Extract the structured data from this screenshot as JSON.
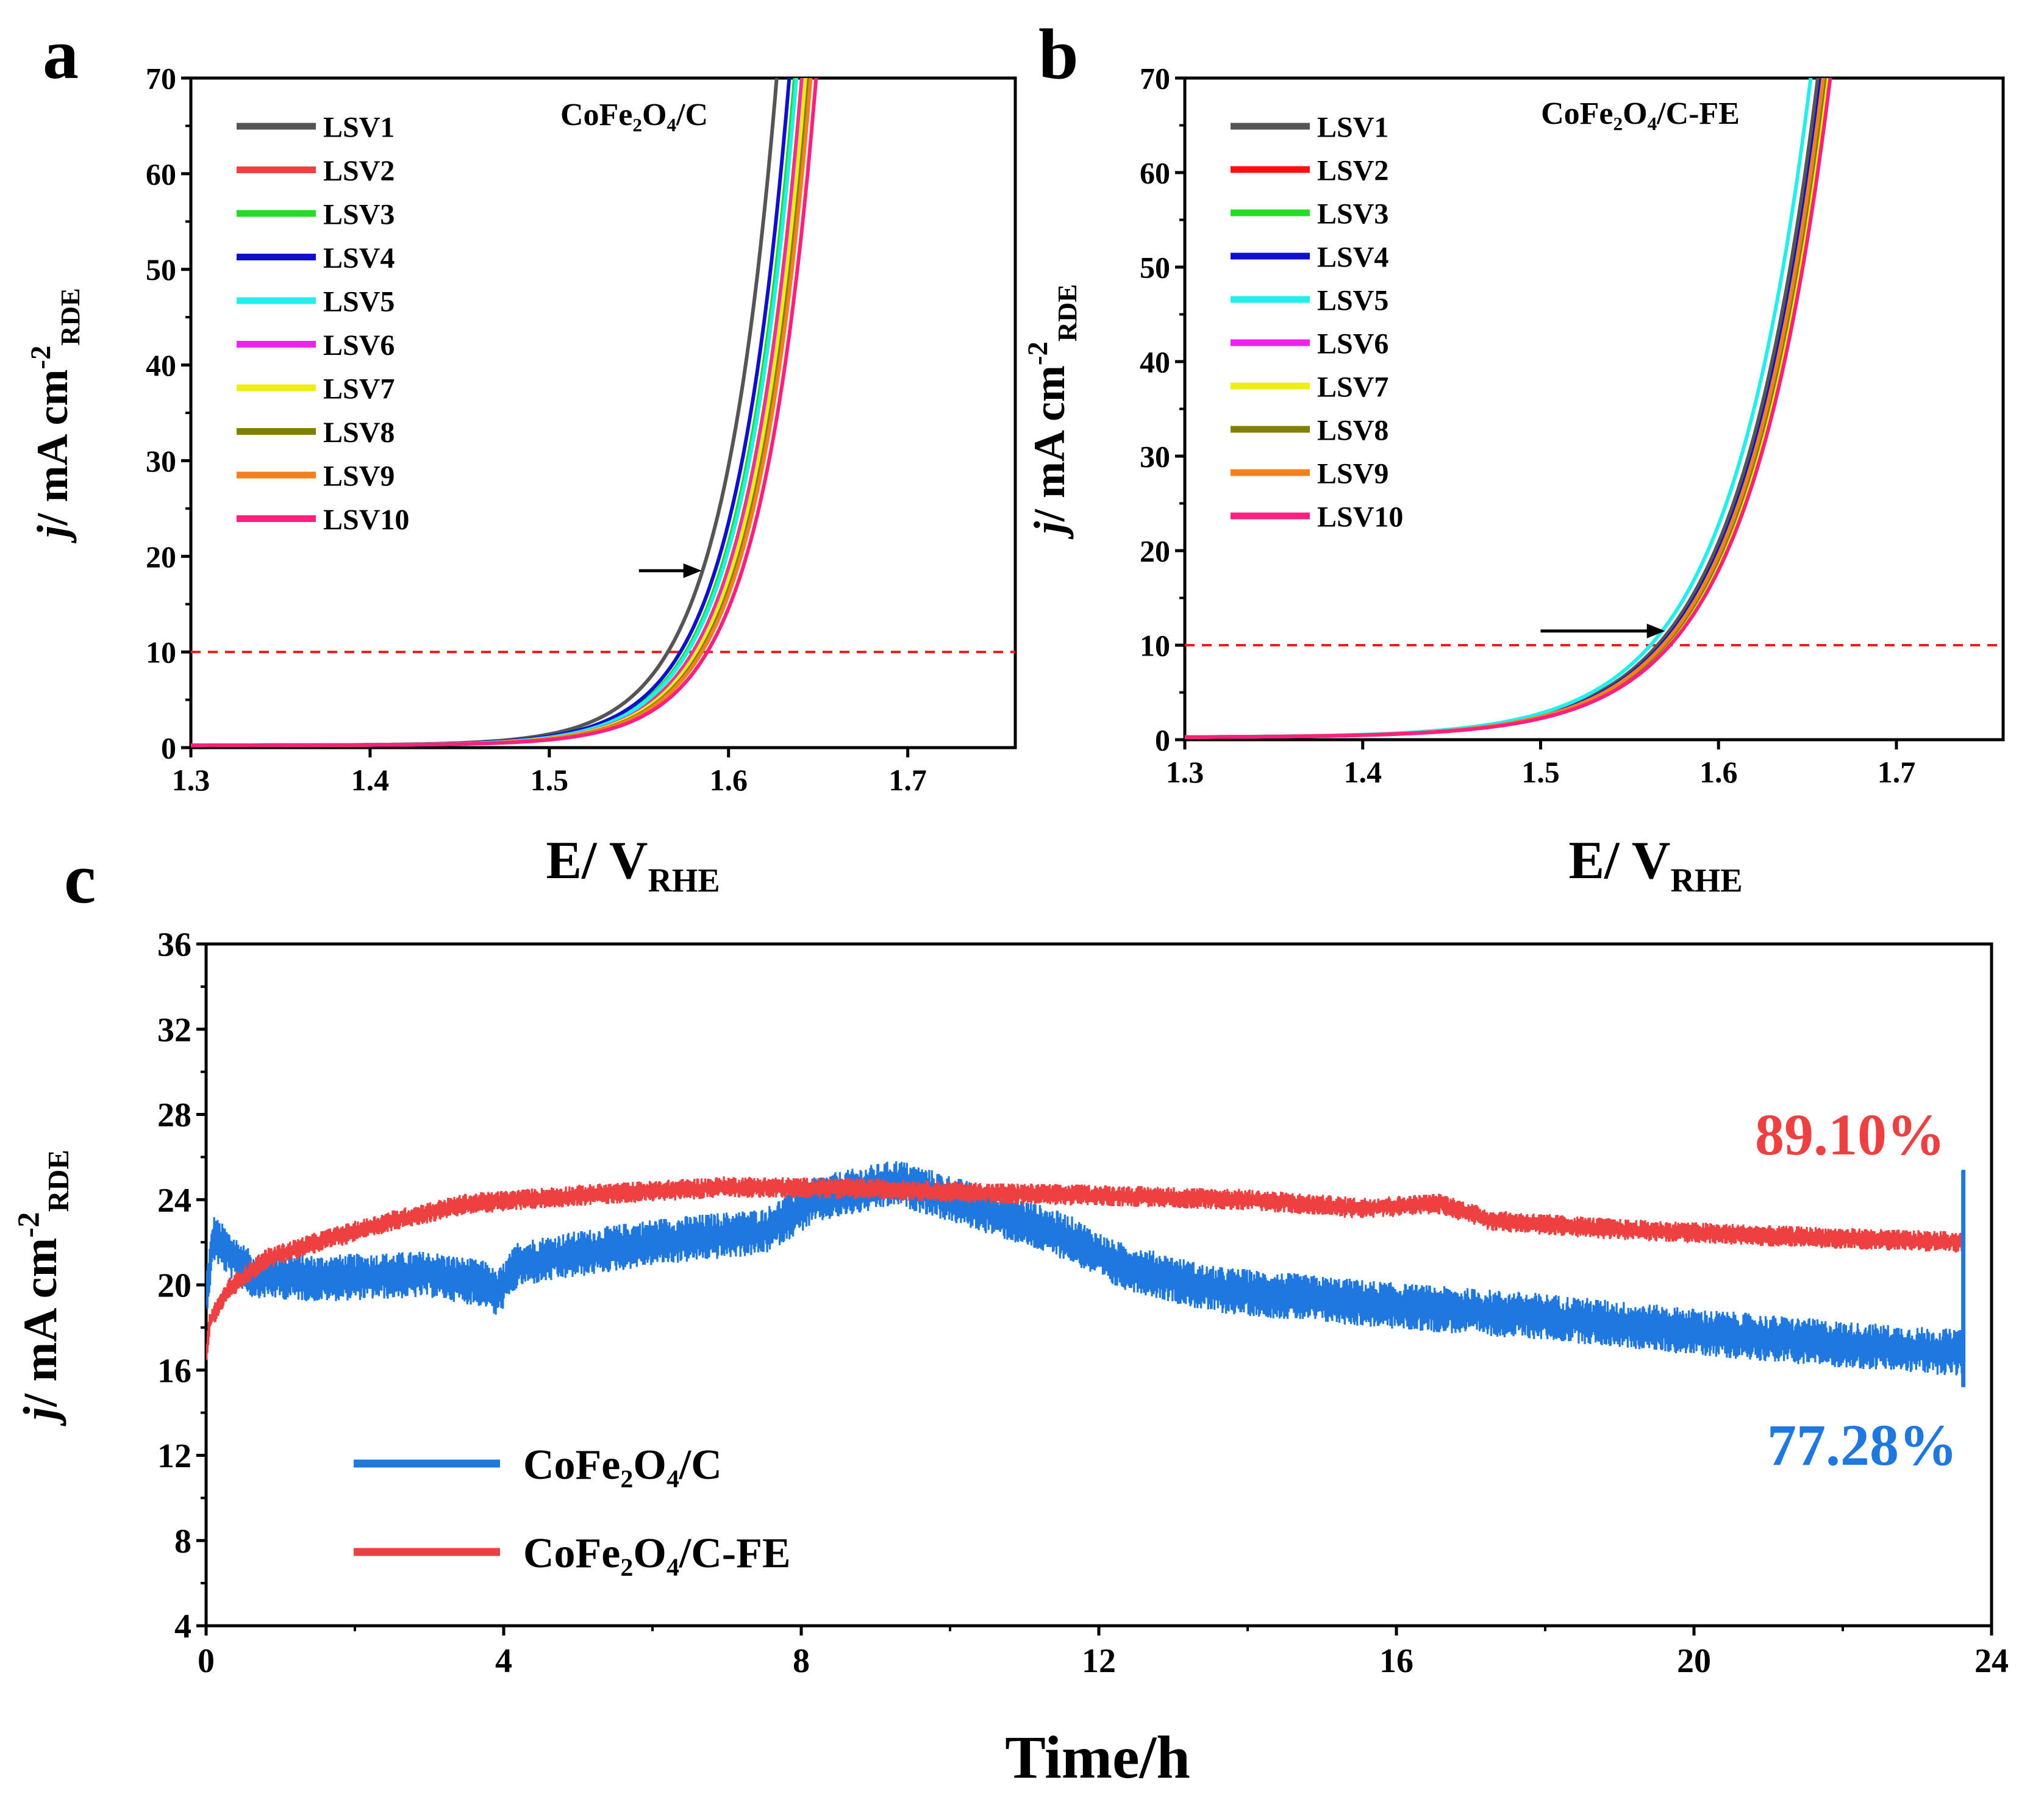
{
  "chart_data": [
    {
      "panel": "a",
      "type": "line",
      "title": "CoFe₂O₄/C",
      "xlabel": {
        "main": "E/ V",
        "sub": "RHE"
      },
      "ylabel": {
        "italic": "j",
        "main": "/ mA cm",
        "sup": "-2",
        "sub": "RDE"
      },
      "xlim": [
        1.3,
        1.76
      ],
      "ylim": [
        0,
        70
      ],
      "xticks": [
        1.3,
        1.4,
        1.5,
        1.6,
        1.7
      ],
      "xtick_labels": [
        "1.3",
        "1.4",
        "1.5",
        "1.6",
        "1.7"
      ],
      "yticks": [
        0,
        10,
        20,
        30,
        40,
        50,
        60,
        70
      ],
      "ytick_labels": [
        "0",
        "10",
        "20",
        "30",
        "40",
        "50",
        "60",
        "70"
      ],
      "reference_line": {
        "y": 10,
        "color": "#ee1c1c",
        "style": "dashed"
      },
      "arrow": {
        "from": [
          1.55,
          18.5
        ],
        "to": [
          1.585,
          18.5
        ]
      },
      "curve_shape": {
        "onset": 1.48,
        "i10_potential": 1.567,
        "j70_potential": 1.627
      },
      "series": [
        {
          "name": "LSV1",
          "color": "#555555",
          "shift": 0.0
        },
        {
          "name": "LSV2",
          "color": "#ee4040",
          "shift": 0.014
        },
        {
          "name": "LSV3",
          "color": "#22dd22",
          "shift": 0.01
        },
        {
          "name": "LSV4",
          "color": "#1010cc",
          "shift": 0.007
        },
        {
          "name": "LSV5",
          "color": "#22eeee",
          "shift": 0.011
        },
        {
          "name": "LSV6",
          "color": "#ee22ee",
          "shift": 0.015
        },
        {
          "name": "LSV7",
          "color": "#eeee10",
          "shift": 0.016
        },
        {
          "name": "LSV8",
          "color": "#808000",
          "shift": 0.018
        },
        {
          "name": "LSV9",
          "color": "#f28020",
          "shift": 0.019
        },
        {
          "name": "LSV10",
          "color": "#ff1f7f",
          "shift": 0.022
        }
      ]
    },
    {
      "panel": "b",
      "type": "line",
      "title": "CoFe₂O₄/C-FE",
      "xlabel": {
        "main": "E/ V",
        "sub": "RHE"
      },
      "ylabel": {
        "italic": "j",
        "main": "/ mA cm",
        "sup": "-2",
        "sub": "RDE"
      },
      "xlim": [
        1.3,
        1.76
      ],
      "ylim": [
        0,
        70
      ],
      "xticks": [
        1.3,
        1.4,
        1.5,
        1.6,
        1.7
      ],
      "xtick_labels": [
        "1.3",
        "1.4",
        "1.5",
        "1.6",
        "1.7"
      ],
      "yticks": [
        0,
        10,
        20,
        30,
        40,
        50,
        60,
        70
      ],
      "ytick_labels": [
        "0",
        "10",
        "20",
        "30",
        "40",
        "50",
        "60",
        "70"
      ],
      "reference_line": {
        "y": 10,
        "color": "#ee1c1c",
        "style": "dashed"
      },
      "arrow": {
        "from": [
          1.5,
          11.5
        ],
        "to": [
          1.57,
          11.5
        ]
      },
      "curve_shape": {
        "onset": 1.47,
        "i10_potential": 1.567,
        "j70_potential": 1.656
      },
      "series": [
        {
          "name": "LSV1",
          "color": "#555555",
          "shift": 0.0
        },
        {
          "name": "LSV2",
          "color": "#ff1010",
          "shift": 0.004
        },
        {
          "name": "LSV3",
          "color": "#22dd22",
          "shift": 0.003
        },
        {
          "name": "LSV4",
          "color": "#1010cc",
          "shift": 0.002
        },
        {
          "name": "LSV5",
          "color": "#22eeee",
          "shift": -0.004
        },
        {
          "name": "LSV6",
          "color": "#ee22ee",
          "shift": 0.006
        },
        {
          "name": "LSV7",
          "color": "#eeee10",
          "shift": 0.005
        },
        {
          "name": "LSV8",
          "color": "#808000",
          "shift": 0.004
        },
        {
          "name": "LSV9",
          "color": "#f28020",
          "shift": 0.003
        },
        {
          "name": "LSV10",
          "color": "#ff1f7f",
          "shift": 0.007
        }
      ]
    },
    {
      "panel": "c",
      "type": "line",
      "xlabel": {
        "main": "Time/h"
      },
      "ylabel": {
        "italic": "j",
        "main": "/ mA cm",
        "sup": "-2",
        "sub": "RDE"
      },
      "xlim": [
        0,
        24
      ],
      "ylim": [
        4,
        36
      ],
      "xticks": [
        0,
        4,
        8,
        12,
        16,
        20,
        24
      ],
      "xtick_labels": [
        "0",
        "4",
        "8",
        "12",
        "16",
        "20",
        "24"
      ],
      "yticks": [
        4,
        8,
        12,
        16,
        20,
        24,
        28,
        32,
        36
      ],
      "ytick_labels": [
        "4",
        "8",
        "12",
        "16",
        "20",
        "24",
        "28",
        "32",
        "36"
      ],
      "series": [
        {
          "name": "CoFe₂O₄/C",
          "color": "#1f78e0",
          "retention": "77.28%",
          "noise_band": 2.2,
          "points": [
            [
              0,
              19.5
            ],
            [
              0.1,
              22.2
            ],
            [
              0.3,
              21.5
            ],
            [
              0.6,
              20.5
            ],
            [
              1.5,
              20.3
            ],
            [
              3,
              20.5
            ],
            [
              3.8,
              20.0
            ],
            [
              3.9,
              19.5
            ],
            [
              4.2,
              21.0
            ],
            [
              6,
              22.0
            ],
            [
              7.5,
              22.5
            ],
            [
              8.2,
              24.0
            ],
            [
              9.3,
              24.8
            ],
            [
              10.5,
              23.5
            ],
            [
              11.6,
              22.2
            ],
            [
              12.2,
              21.0
            ],
            [
              13.5,
              19.8
            ],
            [
              16,
              19.0
            ],
            [
              18,
              18.5
            ],
            [
              20,
              17.8
            ],
            [
              22,
              17.2
            ],
            [
              23.6,
              16.8
            ]
          ]
        },
        {
          "name": "CoFe₂O₄/C-FE",
          "color": "#ee4040",
          "retention": "89.10%",
          "noise_band": 1.0,
          "points": [
            [
              0,
              16.5
            ],
            [
              0.05,
              18.3
            ],
            [
              0.3,
              19.8
            ],
            [
              0.8,
              21.2
            ],
            [
              1.5,
              22.0
            ],
            [
              2.5,
              23.0
            ],
            [
              3.5,
              23.8
            ],
            [
              5,
              24.2
            ],
            [
              7,
              24.6
            ],
            [
              9,
              24.5
            ],
            [
              10.5,
              24.3
            ],
            [
              12,
              24.2
            ],
            [
              14,
              24.0
            ],
            [
              15.5,
              23.6
            ],
            [
              16.6,
              23.8
            ],
            [
              17.3,
              23.0
            ],
            [
              19,
              22.6
            ],
            [
              21,
              22.3
            ],
            [
              23.6,
              22.0
            ]
          ]
        }
      ]
    }
  ],
  "panel_labels": [
    "a",
    "b",
    "c"
  ]
}
